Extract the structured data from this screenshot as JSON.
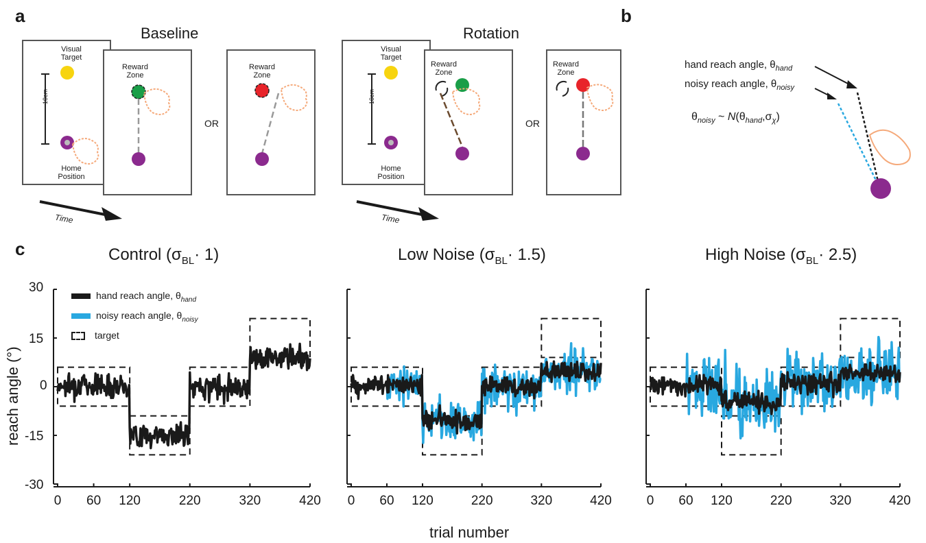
{
  "panels": {
    "a": "a",
    "b": "b",
    "c": "c"
  },
  "panel_a": {
    "baseline_title": "Baseline",
    "rotation_title": "Rotation",
    "visual_target": "Visual\nTarget",
    "home_position": "Home\nPosition",
    "reward_zone": "Reward\nZone",
    "distance": "10cm",
    "or": "OR",
    "time": "Time",
    "colors": {
      "target": "#f7d40f",
      "home": "#8b2a8e",
      "success": "#1a9e48",
      "fail": "#e8242a",
      "hand": "#f5a97a"
    }
  },
  "panel_b": {
    "hand_label": "hand reach angle, θ",
    "hand_sub": "hand",
    "noisy_label": "noisy reach angle, θ",
    "noisy_sub": "noisy",
    "eq_theta": "θ",
    "eq_noisy_sub": "noisy",
    "eq_tilde": " ~ ",
    "eq_N": "N",
    "eq_open": "(θ",
    "eq_hand_sub": "hand",
    "eq_comma": ",σ",
    "eq_chi_sub": "χ",
    "eq_close": ")"
  },
  "panel_c": {
    "ylabel": "reach angle (°)",
    "xlabel": "trial number",
    "yticks": [
      "30",
      "15",
      "0",
      "-15",
      "-30"
    ],
    "xticks": [
      "0",
      "60",
      "120",
      "220",
      "320",
      "420"
    ],
    "legend": {
      "hand": "hand reach angle, θ",
      "hand_sub": "hand",
      "noisy": "noisy reach angle, θ",
      "noisy_sub": "noisy",
      "target": "target"
    },
    "titles": [
      {
        "pre": "Control (σ",
        "sub": "BL",
        "post": "· 1)"
      },
      {
        "pre": "Low Noise (σ",
        "sub": "BL",
        "post": "· 1.5)"
      },
      {
        "pre": "High Noise (σ",
        "sub": "BL",
        "post": "· 2.5)"
      }
    ]
  },
  "chart_data": [
    {
      "type": "line",
      "title": "Control (σBL· 1)",
      "xlabel": "trial number",
      "ylabel": "reach angle (°)",
      "xlim": [
        0,
        420
      ],
      "ylim": [
        -30,
        30
      ],
      "target_windows": [
        {
          "x": [
            0,
            120
          ],
          "y": [
            -6,
            6
          ]
        },
        {
          "x": [
            120,
            220
          ],
          "y": [
            -21,
            -9
          ]
        },
        {
          "x": [
            220,
            320
          ],
          "y": [
            -6,
            6
          ]
        },
        {
          "x": [
            320,
            420
          ],
          "y": [
            9,
            21
          ]
        }
      ],
      "series": [
        {
          "name": "hand reach angle, θhand",
          "color": "#1a1a1a",
          "noise_scale": 0,
          "segments_mean": [
            [
              0,
              120,
              0.5
            ],
            [
              120,
              220,
              -15
            ],
            [
              220,
              320,
              0
            ],
            [
              320,
              420,
              9
            ]
          ]
        }
      ]
    },
    {
      "type": "line",
      "title": "Low Noise (σBL· 1.5)",
      "xlabel": "trial number",
      "ylabel": "reach angle (°)",
      "xlim": [
        0,
        420
      ],
      "ylim": [
        -30,
        30
      ],
      "target_windows": [
        {
          "x": [
            0,
            120
          ],
          "y": [
            -6,
            6
          ]
        },
        {
          "x": [
            120,
            220
          ],
          "y": [
            -21,
            -9
          ]
        },
        {
          "x": [
            220,
            320
          ],
          "y": [
            -6,
            6
          ]
        },
        {
          "x": [
            320,
            420
          ],
          "y": [
            9,
            21
          ]
        }
      ],
      "series": [
        {
          "name": "noisy reach angle, θnoisy",
          "color": "#29a8e0",
          "start": 60,
          "noise_scale": 1.5
        },
        {
          "name": "hand reach angle, θhand",
          "color": "#1a1a1a",
          "segments_mean": [
            [
              0,
              120,
              0.5
            ],
            [
              120,
              220,
              -10
            ],
            [
              220,
              320,
              0
            ],
            [
              320,
              420,
              5
            ]
          ]
        }
      ]
    },
    {
      "type": "line",
      "title": "High Noise (σBL· 2.5)",
      "xlabel": "trial number",
      "ylabel": "reach angle (°)",
      "xlim": [
        0,
        420
      ],
      "ylim": [
        -30,
        30
      ],
      "target_windows": [
        {
          "x": [
            0,
            120
          ],
          "y": [
            -6,
            6
          ]
        },
        {
          "x": [
            120,
            220
          ],
          "y": [
            -21,
            -9
          ]
        },
        {
          "x": [
            220,
            320
          ],
          "y": [
            -6,
            6
          ]
        },
        {
          "x": [
            320,
            420
          ],
          "y": [
            9,
            21
          ]
        }
      ],
      "series": [
        {
          "name": "noisy reach angle, θnoisy",
          "color": "#29a8e0",
          "start": 60,
          "noise_scale": 2.5
        },
        {
          "name": "hand reach angle, θhand",
          "color": "#1a1a1a",
          "segments_mean": [
            [
              0,
              120,
              0.5
            ],
            [
              120,
              220,
              -4
            ],
            [
              220,
              320,
              1
            ],
            [
              320,
              420,
              4
            ]
          ]
        }
      ]
    }
  ]
}
